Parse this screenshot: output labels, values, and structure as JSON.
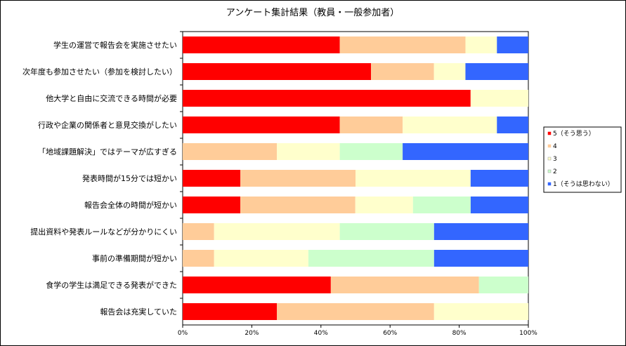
{
  "chart_data": {
    "type": "bar",
    "orientation": "horizontal",
    "stacked": "percent",
    "title": "アンケート集計結果（教員・一般参加者）",
    "categories": [
      "学生の運営で報告会を実施させたい",
      "次年度も参加させたい（参加を検討したい）",
      "他大学と自由に交流できる時間が必要",
      "行政や企業の関係者と意見交換がしたい",
      "「地域課題解決」ではテーマが広すぎる",
      "発表時間が15分では短かい",
      "報告会全体の時間が短かい",
      "提出資料や発表ルールなどが分かりにくい",
      "事前の準備期間が短かい",
      "食学の学生は満足できる発表ができた",
      "報告会は充実していた"
    ],
    "series": [
      {
        "name": "5（そう思う）",
        "color": "#ff0000",
        "values": [
          45.5,
          54.5,
          83.3,
          45.5,
          0,
          16.7,
          16.7,
          0,
          0,
          42.9,
          27.3
        ]
      },
      {
        "name": "4",
        "color": "#ffcc99",
        "values": [
          36.4,
          18.2,
          0,
          18.2,
          27.3,
          33.3,
          33.3,
          9.1,
          9.1,
          42.9,
          45.5
        ]
      },
      {
        "name": "3",
        "color": "#ffffcc",
        "values": [
          9.1,
          9.1,
          16.7,
          27.3,
          18.2,
          33.3,
          16.7,
          36.4,
          27.3,
          0,
          27.3
        ]
      },
      {
        "name": "2",
        "color": "#ccffcc",
        "values": [
          0,
          0,
          0,
          0,
          18.2,
          0,
          16.7,
          27.3,
          36.4,
          14.3,
          0
        ]
      },
      {
        "name": "1（そうは思わない）",
        "color": "#3366ff",
        "values": [
          9.1,
          18.2,
          0,
          9.1,
          36.4,
          16.7,
          16.7,
          27.3,
          27.3,
          0,
          0
        ]
      }
    ],
    "xticks": [
      "0%",
      "20%",
      "40%",
      "60%",
      "80%",
      "100%"
    ],
    "xlim": [
      0,
      100
    ],
    "legend": "right",
    "grid": false
  }
}
